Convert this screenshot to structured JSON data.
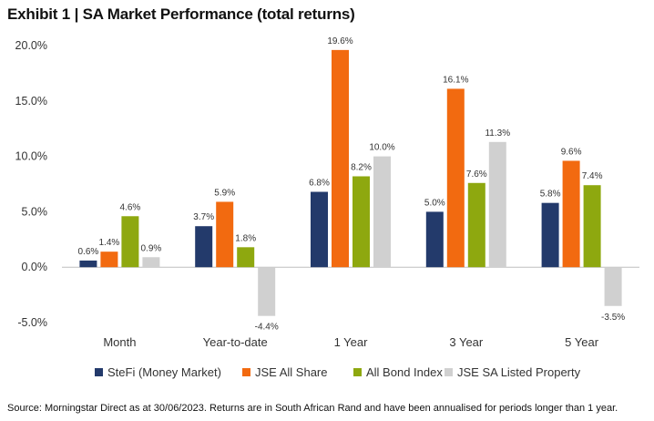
{
  "title": "Exhibit 1 | SA Market Performance (total returns)",
  "source": "Source: Morningstar Direct as at 30/06/2023. Returns are in South African Rand and have been annualised for periods longer than 1 year.",
  "chart_data": {
    "type": "bar",
    "title": "Exhibit 1 | SA Market Performance (total returns)",
    "xlabel": "",
    "ylabel": "",
    "ylim": [
      -5,
      20
    ],
    "yticks": [
      -5,
      0,
      5,
      10,
      15,
      20
    ],
    "ytick_labels": [
      "-5.0%",
      "0.0%",
      "5.0%",
      "10.0%",
      "15.0%",
      "20.0%"
    ],
    "grid": false,
    "legend": "bottom",
    "categories": [
      "Month",
      "Year-to-date",
      "1 Year",
      "3 Year",
      "5 Year"
    ],
    "series": [
      {
        "name": "SteFi (Money Market)",
        "color": "#233a6b",
        "values": [
          0.6,
          3.7,
          6.8,
          5.0,
          5.8
        ],
        "labels": [
          "0.6%",
          "3.7%",
          "6.8%",
          "5.0%",
          "5.8%"
        ]
      },
      {
        "name": "JSE All Share",
        "color": "#f26a10",
        "values": [
          1.4,
          5.9,
          19.6,
          16.1,
          9.6
        ],
        "labels": [
          "1.4%",
          "5.9%",
          "19.6%",
          "16.1%",
          "9.6%"
        ]
      },
      {
        "name": "All Bond Index",
        "color": "#8ea80f",
        "values": [
          4.6,
          1.8,
          8.2,
          7.6,
          7.4
        ],
        "labels": [
          "4.6%",
          "1.8%",
          "8.2%",
          "7.6%",
          "7.4%"
        ]
      },
      {
        "name": "JSE SA Listed Property",
        "color": "#d0d0d0",
        "values": [
          0.9,
          -4.4,
          10.0,
          11.3,
          -3.5
        ],
        "labels": [
          "0.9%",
          "-4.4%",
          "10.0%",
          "11.3%",
          "-3.5%"
        ]
      }
    ]
  }
}
